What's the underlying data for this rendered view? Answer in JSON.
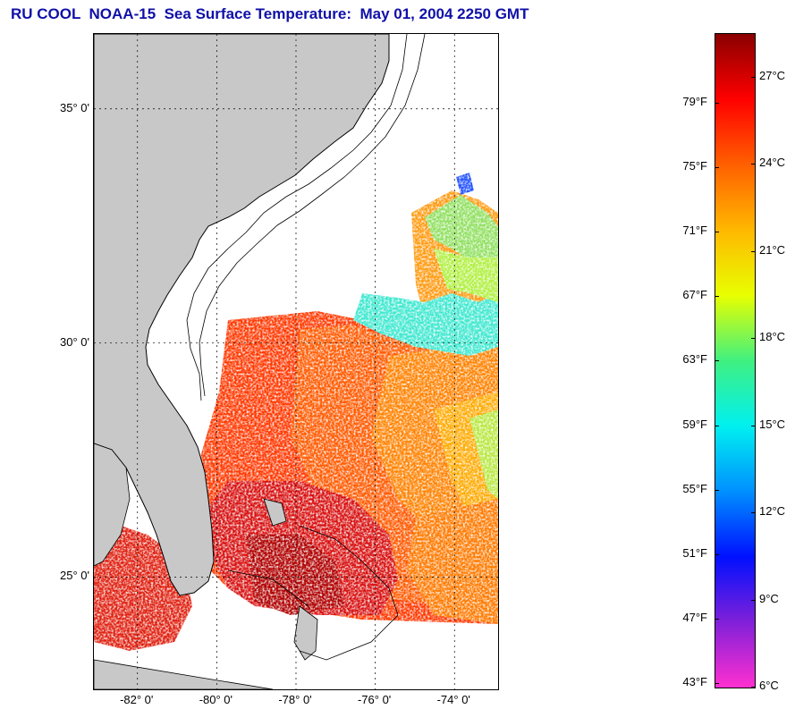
{
  "title": "RU COOL  NOAA-15  Sea Surface Temperature:  May 01, 2004 2250 GMT",
  "map": {
    "lat_labels": [
      {
        "text": "35° 0'",
        "lat": 35
      },
      {
        "text": "30° 0'",
        "lat": 30
      },
      {
        "text": "25° 0'",
        "lat": 25
      }
    ],
    "lon_labels": [
      {
        "text": "-82° 0'",
        "lon": -82
      },
      {
        "text": "-80° 0'",
        "lon": -80
      },
      {
        "text": "-78° 0'",
        "lon": -78
      },
      {
        "text": "-76° 0'",
        "lon": -76
      },
      {
        "text": "-74° 0'",
        "lon": -74
      }
    ],
    "lon_range": [
      -83.1,
      -72.9
    ],
    "lat_range": [
      22.6,
      36.6
    ],
    "contours": [
      "120 ft",
      "600 ft"
    ],
    "colors": {
      "land": "#c8c8c8",
      "ocean_nodata": "#ffffff",
      "coast": "#000000"
    }
  },
  "colorbar": {
    "fahrenheit": [
      {
        "text": "79°F",
        "value": 79
      },
      {
        "text": "75°F",
        "value": 75
      },
      {
        "text": "71°F",
        "value": 71
      },
      {
        "text": "67°F",
        "value": 67
      },
      {
        "text": "63°F",
        "value": 63
      },
      {
        "text": "59°F",
        "value": 59
      },
      {
        "text": "55°F",
        "value": 55
      },
      {
        "text": "51°F",
        "value": 51
      },
      {
        "text": "47°F",
        "value": 47
      },
      {
        "text": "43°F",
        "value": 43
      }
    ],
    "celsius": [
      {
        "text": "27°C",
        "value": 27
      },
      {
        "text": "24°C",
        "value": 24
      },
      {
        "text": "21°C",
        "value": 21
      },
      {
        "text": "18°C",
        "value": 18
      },
      {
        "text": "15°C",
        "value": 15
      },
      {
        "text": "12°C",
        "value": 12
      },
      {
        "text": "9°C",
        "value": 9
      },
      {
        "text": "6°C",
        "value": 6
      }
    ],
    "range_c": [
      6,
      28.5
    ],
    "colors": [
      "#ff30d0",
      "#8020d8",
      "#0010ff",
      "#0090ff",
      "#00f0f0",
      "#40f080",
      "#e8ff00",
      "#ffb800",
      "#ff6000",
      "#ff0000",
      "#8a0000"
    ]
  }
}
